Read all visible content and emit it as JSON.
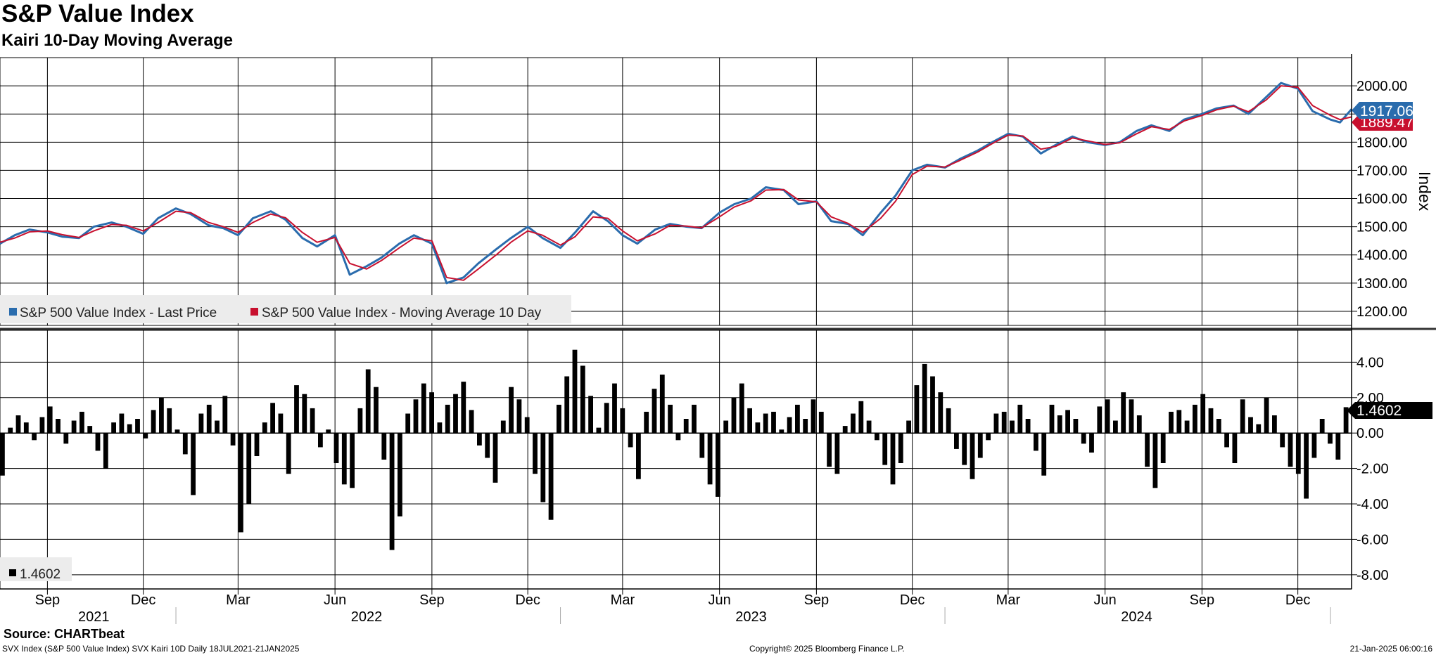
{
  "title": "S&P Value Index",
  "subtitle": "Kairi 10-Day Moving Average",
  "source": "Source: CHARTbeat",
  "footer": {
    "left": "SVX Index (S&P 500 Value Index) SVX Kairi 10D  Daily 18JUL2021-21JAN2025",
    "center": "Copyright© 2025 Bloomberg Finance L.P.",
    "right": "21-Jan-2025 06:00:16"
  },
  "colors": {
    "last_price": "#2a6cad",
    "moving_average": "#c8102e",
    "kairi_bars": "#000000",
    "price_tag": "#2a6cad",
    "ma_tag": "#c8102e",
    "kairi_tag": "#000000"
  },
  "chart_data": [
    {
      "type": "line",
      "title": "S&P Value Index",
      "ylabel": "Index",
      "ylim": [
        1150,
        2100
      ],
      "yticks": [
        "1200.00",
        "1300.00",
        "1400.00",
        "1500.00",
        "1600.00",
        "1700.00",
        "1800.00",
        "1900.00",
        "2000.00"
      ],
      "grid": true,
      "legend": "bottom-left",
      "last_values": {
        "last_price": "1917.06",
        "moving_average": "1889.47"
      },
      "series": [
        {
          "name": "S&P 500 Value Index - Last Price",
          "x": [
            "2021-07-18",
            "2021-08-01",
            "2021-08-15",
            "2021-09-01",
            "2021-09-15",
            "2021-10-01",
            "2021-10-15",
            "2021-11-01",
            "2021-11-15",
            "2021-12-01",
            "2021-12-15",
            "2022-01-01",
            "2022-01-15",
            "2022-02-01",
            "2022-02-15",
            "2022-03-01",
            "2022-03-15",
            "2022-04-01",
            "2022-04-15",
            "2022-05-01",
            "2022-05-15",
            "2022-06-01",
            "2022-06-15",
            "2022-07-01",
            "2022-07-15",
            "2022-08-01",
            "2022-08-15",
            "2022-09-01",
            "2022-09-15",
            "2022-10-01",
            "2022-10-15",
            "2022-11-01",
            "2022-11-15",
            "2022-12-01",
            "2022-12-15",
            "2023-01-01",
            "2023-01-15",
            "2023-02-01",
            "2023-02-15",
            "2023-03-01",
            "2023-03-15",
            "2023-04-01",
            "2023-04-15",
            "2023-05-01",
            "2023-05-15",
            "2023-06-01",
            "2023-06-15",
            "2023-07-01",
            "2023-07-15",
            "2023-08-01",
            "2023-08-15",
            "2023-09-01",
            "2023-09-15",
            "2023-10-01",
            "2023-10-15",
            "2023-11-01",
            "2023-11-15",
            "2023-12-01",
            "2023-12-15",
            "2024-01-01",
            "2024-01-15",
            "2024-02-01",
            "2024-02-15",
            "2024-03-01",
            "2024-03-15",
            "2024-04-01",
            "2024-04-15",
            "2024-05-01",
            "2024-05-15",
            "2024-06-01",
            "2024-06-15",
            "2024-07-01",
            "2024-07-15",
            "2024-08-01",
            "2024-08-15",
            "2024-09-01",
            "2024-09-15",
            "2024-10-01",
            "2024-10-15",
            "2024-11-01",
            "2024-11-15",
            "2024-12-01",
            "2024-12-15",
            "2025-01-01",
            "2025-01-10",
            "2025-01-21"
          ],
          "values": [
            1440,
            1470,
            1490,
            1480,
            1465,
            1460,
            1500,
            1515,
            1500,
            1475,
            1530,
            1565,
            1545,
            1505,
            1495,
            1470,
            1530,
            1555,
            1525,
            1460,
            1430,
            1470,
            1330,
            1360,
            1390,
            1440,
            1470,
            1440,
            1300,
            1320,
            1370,
            1420,
            1460,
            1500,
            1460,
            1425,
            1480,
            1555,
            1520,
            1470,
            1440,
            1490,
            1510,
            1500,
            1495,
            1550,
            1580,
            1600,
            1640,
            1630,
            1580,
            1590,
            1520,
            1510,
            1470,
            1550,
            1610,
            1700,
            1720,
            1710,
            1740,
            1770,
            1800,
            1830,
            1820,
            1760,
            1790,
            1820,
            1800,
            1790,
            1800,
            1840,
            1860,
            1840,
            1880,
            1900,
            1920,
            1930,
            1900,
            1960,
            2010,
            1990,
            1910,
            1880,
            1870,
            1917.06
          ]
        },
        {
          "name": "S&P 500 Value Index - Moving Average 10 Day",
          "x": [
            "2021-07-18",
            "2021-08-01",
            "2021-08-15",
            "2021-09-01",
            "2021-09-15",
            "2021-10-01",
            "2021-10-15",
            "2021-11-01",
            "2021-11-15",
            "2021-12-01",
            "2021-12-15",
            "2022-01-01",
            "2022-01-15",
            "2022-02-01",
            "2022-02-15",
            "2022-03-01",
            "2022-03-15",
            "2022-04-01",
            "2022-04-15",
            "2022-05-01",
            "2022-05-15",
            "2022-06-01",
            "2022-06-15",
            "2022-07-01",
            "2022-07-15",
            "2022-08-01",
            "2022-08-15",
            "2022-09-01",
            "2022-09-15",
            "2022-10-01",
            "2022-10-15",
            "2022-11-01",
            "2022-11-15",
            "2022-12-01",
            "2022-12-15",
            "2023-01-01",
            "2023-01-15",
            "2023-02-01",
            "2023-02-15",
            "2023-03-01",
            "2023-03-15",
            "2023-04-01",
            "2023-04-15",
            "2023-05-01",
            "2023-05-15",
            "2023-06-01",
            "2023-06-15",
            "2023-07-01",
            "2023-07-15",
            "2023-08-01",
            "2023-08-15",
            "2023-09-01",
            "2023-09-15",
            "2023-10-01",
            "2023-10-15",
            "2023-11-01",
            "2023-11-15",
            "2023-12-01",
            "2023-12-15",
            "2024-01-01",
            "2024-01-15",
            "2024-02-01",
            "2024-02-15",
            "2024-03-01",
            "2024-03-15",
            "2024-04-01",
            "2024-04-15",
            "2024-05-01",
            "2024-05-15",
            "2024-06-01",
            "2024-06-15",
            "2024-07-01",
            "2024-07-15",
            "2024-08-01",
            "2024-08-15",
            "2024-09-01",
            "2024-09-15",
            "2024-10-01",
            "2024-10-15",
            "2024-11-01",
            "2024-11-15",
            "2024-12-01",
            "2024-12-15",
            "2025-01-01",
            "2025-01-10",
            "2025-01-21"
          ],
          "values": [
            1445,
            1460,
            1482,
            1485,
            1472,
            1462,
            1485,
            1508,
            1505,
            1485,
            1515,
            1555,
            1550,
            1515,
            1500,
            1480,
            1515,
            1545,
            1532,
            1480,
            1445,
            1462,
            1370,
            1350,
            1380,
            1425,
            1460,
            1450,
            1320,
            1310,
            1350,
            1400,
            1445,
            1485,
            1470,
            1435,
            1465,
            1535,
            1530,
            1485,
            1450,
            1475,
            1505,
            1502,
            1496,
            1535,
            1570,
            1592,
            1630,
            1632,
            1595,
            1588,
            1535,
            1512,
            1480,
            1530,
            1590,
            1685,
            1715,
            1712,
            1735,
            1765,
            1795,
            1825,
            1822,
            1775,
            1785,
            1815,
            1805,
            1792,
            1798,
            1830,
            1855,
            1845,
            1875,
            1895,
            1915,
            1928,
            1908,
            1950,
            2000,
            1995,
            1930,
            1895,
            1880,
            1889.47
          ]
        }
      ]
    },
    {
      "type": "bar",
      "ylabel": "",
      "ylim": [
        -8.8,
        5.8
      ],
      "yticks": [
        "4.00",
        "2.00",
        "0.00",
        "-2.00",
        "-4.00",
        "-6.00",
        "-8.00"
      ],
      "grid": true,
      "legend": "bottom-left",
      "last_value": "1.4602",
      "series": [
        {
          "name": "1.4602",
          "x_start": "2021-07-18",
          "x_end": "2025-01-21",
          "values": [
            -2.4,
            0.3,
            1.0,
            0.6,
            -0.4,
            0.9,
            1.5,
            0.8,
            -0.6,
            0.7,
            1.2,
            0.4,
            -1.0,
            -2.0,
            0.6,
            1.1,
            0.5,
            0.8,
            -0.3,
            1.3,
            2.0,
            1.4,
            0.2,
            -1.2,
            -3.5,
            1.1,
            1.6,
            0.7,
            2.1,
            -0.7,
            -5.6,
            -4.0,
            -1.3,
            0.6,
            1.7,
            1.1,
            -2.3,
            2.7,
            2.2,
            1.4,
            -0.8,
            0.2,
            -1.7,
            -2.9,
            -3.1,
            1.4,
            3.6,
            2.6,
            -1.5,
            -6.6,
            -4.7,
            1.1,
            1.9,
            2.8,
            2.3,
            0.6,
            1.6,
            2.2,
            2.9,
            1.3,
            -0.7,
            -1.4,
            -2.8,
            0.7,
            2.6,
            1.9,
            0.9,
            -2.3,
            -3.9,
            -4.9,
            1.6,
            3.2,
            4.7,
            3.8,
            2.1,
            0.3,
            1.7,
            2.8,
            1.4,
            -0.8,
            -2.6,
            1.2,
            2.5,
            3.3,
            1.6,
            -0.4,
            0.8,
            1.6,
            -1.4,
            -2.9,
            -3.6,
            0.7,
            2.0,
            2.8,
            1.4,
            0.6,
            1.1,
            1.2,
            0.2,
            0.9,
            1.6,
            0.8,
            1.9,
            1.2,
            -1.9,
            -2.3,
            0.4,
            1.1,
            1.8,
            0.7,
            -0.4,
            -1.8,
            -2.9,
            -1.7,
            0.7,
            2.7,
            3.9,
            3.2,
            2.3,
            1.4,
            -0.9,
            -1.8,
            -2.6,
            -1.4,
            -0.4,
            1.1,
            1.2,
            0.7,
            1.6,
            0.8,
            -1.0,
            -2.4,
            1.6,
            1.0,
            1.3,
            0.8,
            -0.6,
            -1.1,
            1.5,
            1.9,
            0.7,
            2.3,
            1.9,
            1.0,
            -1.9,
            -3.1,
            -1.7,
            1.2,
            1.3,
            0.7,
            1.6,
            2.2,
            1.4,
            0.8,
            -0.8,
            -1.7,
            1.9,
            0.9,
            0.5,
            2.0,
            1.0,
            -0.8,
            -1.9,
            -2.3,
            -3.7,
            -1.4,
            0.8,
            -0.6,
            -1.5,
            1.4602
          ]
        }
      ]
    }
  ],
  "x_axis": {
    "months": [
      {
        "label": "Sep",
        "date": "2021-09-01"
      },
      {
        "label": "Dec",
        "date": "2021-12-01"
      },
      {
        "label": "Mar",
        "date": "2022-03-01"
      },
      {
        "label": "Jun",
        "date": "2022-06-01"
      },
      {
        "label": "Sep",
        "date": "2022-09-01"
      },
      {
        "label": "Dec",
        "date": "2022-12-01"
      },
      {
        "label": "Mar",
        "date": "2023-03-01"
      },
      {
        "label": "Jun",
        "date": "2023-06-01"
      },
      {
        "label": "Sep",
        "date": "2023-09-01"
      },
      {
        "label": "Dec",
        "date": "2023-12-01"
      },
      {
        "label": "Mar",
        "date": "2024-03-01"
      },
      {
        "label": "Jun",
        "date": "2024-06-01"
      },
      {
        "label": "Sep",
        "date": "2024-09-01"
      },
      {
        "label": "Dec",
        "date": "2024-12-01"
      }
    ],
    "years": [
      {
        "label": "2021",
        "date": "2021-10-15"
      },
      {
        "label": "2022",
        "date": "2022-07-01"
      },
      {
        "label": "2023",
        "date": "2023-07-01"
      },
      {
        "label": "2024",
        "date": "2024-07-01"
      }
    ],
    "year_boundaries": [
      "2022-01-01",
      "2023-01-01",
      "2024-01-01",
      "2025-01-01"
    ]
  }
}
